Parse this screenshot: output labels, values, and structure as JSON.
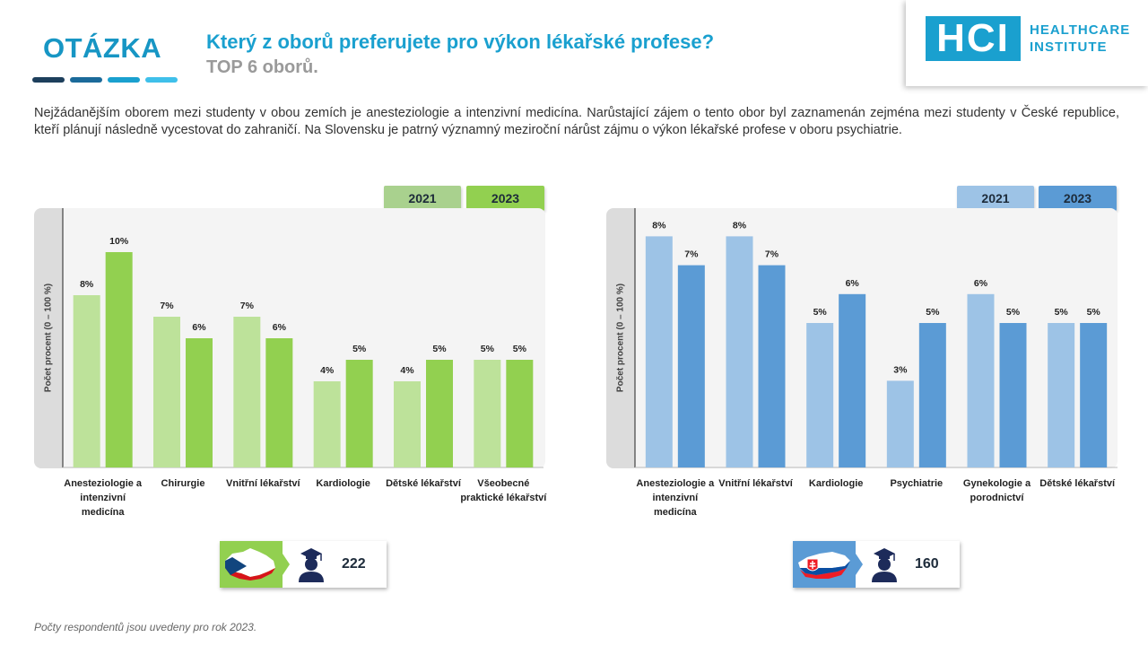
{
  "header": {
    "otazka": "OTÁZKA",
    "title": "Který z oborů preferujete pro výkon lékařské profese?",
    "subtitle": "TOP 6 oborů.",
    "logo_mark": "HCI",
    "logo_line1": "HEALTHCARE",
    "logo_line2": "INSTITUTE"
  },
  "intro": "Nejžádanějším oborem mezi studenty v obou zemích je anesteziologie a intenzivní medicína. Narůstající zájem o tento obor byl zaznamenán zejména mezi studenty v České republice, kteří plánují následně vycestovat do zahraničí. Na Slovensku je patrný významný meziroční nárůst zájmu o výkon lékařské profese v oboru psychiatrie.",
  "colors": {
    "accent": "#1aa0cf",
    "cz_2021": "#bde29a",
    "cz_2023": "#92d050",
    "sk_2021": "#9dc3e6",
    "sk_2023": "#5b9bd5"
  },
  "respondents": {
    "cz": {
      "count": "222",
      "flag_icon": "czech-republic-map-icon",
      "person_icon": "graduate-student-icon"
    },
    "sk": {
      "count": "160",
      "flag_icon": "slovakia-map-icon",
      "person_icon": "graduate-student-icon"
    }
  },
  "footnote": "Počty respondentů jsou uvedeny pro rok 2023.",
  "chart_data": [
    {
      "type": "bar",
      "country": "Czech Republic",
      "ylabel": "Počet procent (0 – 100 %)",
      "ylim": [
        0,
        12
      ],
      "categories": [
        "Anesteziologie a intenzivní medicína",
        "Chirurgie",
        "Vnitřní lékařství",
        "Kardiologie",
        "Dětské lékařství",
        "Všeobecné praktické lékařství"
      ],
      "series": [
        {
          "name": "2021",
          "values": [
            8,
            7,
            7,
            4,
            4,
            5
          ],
          "labels": [
            "8%",
            "7%",
            "7%",
            "4%",
            "4%",
            "5%"
          ]
        },
        {
          "name": "2023",
          "values": [
            10,
            6,
            6,
            5,
            5,
            5
          ],
          "labels": [
            "10%",
            "6%",
            "6%",
            "5%",
            "5%",
            "5%"
          ]
        }
      ]
    },
    {
      "type": "bar",
      "country": "Slovakia",
      "ylabel": "Počet procent (0 – 100 %)",
      "ylim": [
        0,
        9
      ],
      "categories": [
        "Anesteziologie a intenzivní medicína",
        "Vnitřní lékařství",
        "Kardiologie",
        "Psychiatrie",
        "Gynekologie a porodnictví",
        "Dětské lékařství"
      ],
      "series": [
        {
          "name": "2021",
          "values": [
            8,
            8,
            5,
            3,
            6,
            5
          ],
          "labels": [
            "8%",
            "8%",
            "5%",
            "3%",
            "6%",
            "5%"
          ]
        },
        {
          "name": "2023",
          "values": [
            7,
            7,
            6,
            5,
            5,
            5
          ],
          "labels": [
            "7%",
            "7%",
            "6%",
            "5%",
            "5%",
            "5%"
          ]
        }
      ]
    }
  ]
}
